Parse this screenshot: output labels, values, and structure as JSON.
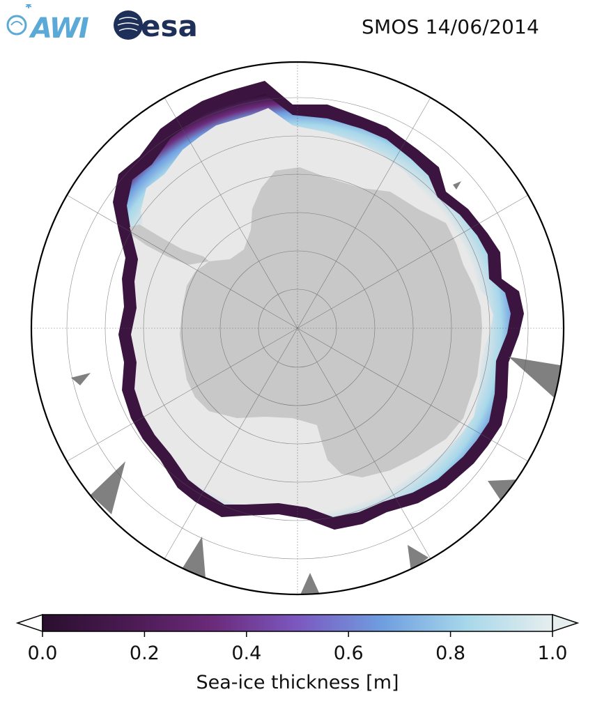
{
  "logos": {
    "awi": "AWI",
    "esa": "esa"
  },
  "title": "SMOS 14/06/2014",
  "map": {
    "projection": "south-polar-stereographic",
    "land_color": "#c8c8c8",
    "ice_max_color": "#e8e8e8",
    "gap_color": "#808080",
    "grid": true
  },
  "colorbar": {
    "label": "Sea-ice thickness [m]",
    "min": 0.0,
    "max": 1.0,
    "extend": "both",
    "ticks": [
      "0.0",
      "0.2",
      "0.4",
      "0.6",
      "0.8",
      "1.0"
    ],
    "tick_values": [
      0.0,
      0.2,
      0.4,
      0.6,
      0.8,
      1.0
    ],
    "colormap": [
      "#2a0f2e",
      "#4a1a52",
      "#6b2a7a",
      "#7b58c0",
      "#6f9ee0",
      "#a8d8ea",
      "#e6eeee"
    ]
  }
}
